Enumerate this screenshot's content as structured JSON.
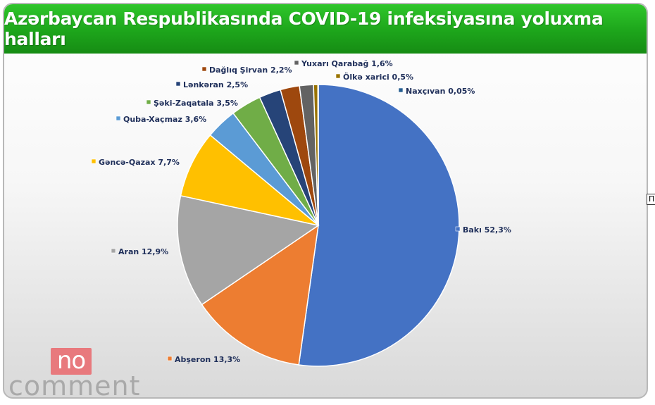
{
  "chart_data": {
    "type": "pie",
    "title": "Azərbaycan Respublikasında COVID-19 infeksiyasına yoluxma halları",
    "slices": [
      {
        "name": "Bakı",
        "value": 52.3,
        "label": "Bakı  52,3%",
        "color": "#4472c4"
      },
      {
        "name": "Abşeron",
        "value": 13.3,
        "label": "Abşeron 13,3%",
        "color": "#ed7d31"
      },
      {
        "name": "Aran",
        "value": 12.9,
        "label": "Aran 12,9%",
        "color": "#a5a5a5"
      },
      {
        "name": "Gəncə-Qazax",
        "value": 7.7,
        "label": "Gəncə-Qazax 7,7%",
        "color": "#ffc000"
      },
      {
        "name": "Quba-Xaçmaz",
        "value": 3.6,
        "label": "Quba-Xaçmaz 3,6%",
        "color": "#5b9bd5"
      },
      {
        "name": "Şəki-Zaqatala",
        "value": 3.5,
        "label": "Şəki-Zaqatala 3,5%",
        "color": "#70ad47"
      },
      {
        "name": "Lənkəran",
        "value": 2.5,
        "label": "Lənkəran 2,5%",
        "color": "#264478"
      },
      {
        "name": "Dağlıq Şirvan",
        "value": 2.2,
        "label": "Dağlıq Şirvan 2,2%",
        "color": "#9e480e"
      },
      {
        "name": "Yuxarı Qarabağ",
        "value": 1.6,
        "label": "Yuxarı Qarabağ 1,6%",
        "color": "#636363"
      },
      {
        "name": "Ölkə xarici",
        "value": 0.5,
        "label": "Ölkə xarici 0,5%",
        "color": "#997300"
      },
      {
        "name": "Naxçıvan",
        "value": 0.05,
        "label": "Naxçıvan 0,05%",
        "color": "#255e91"
      }
    ]
  },
  "watermark": {
    "box_text": "no",
    "text": "comment"
  },
  "side_stub_text": "П"
}
